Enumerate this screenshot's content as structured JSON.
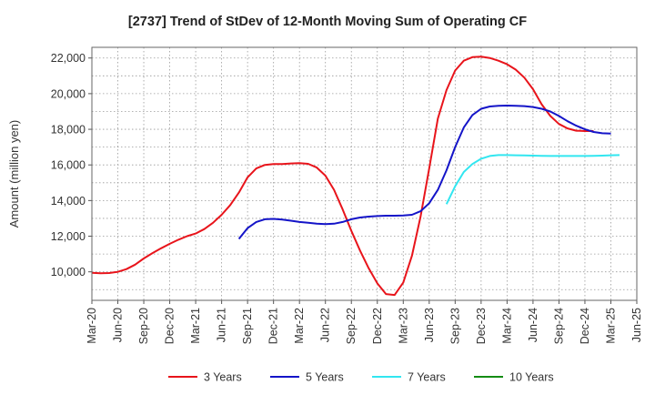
{
  "chart_data": {
    "type": "line",
    "title": "[2737]  Trend of StDev of 12-Month Moving Sum of Operating CF",
    "xlabel": "",
    "ylabel": "Amount (million yen)",
    "ylim": [
      8400,
      22600
    ],
    "yticks": [
      10000,
      12000,
      14000,
      16000,
      18000,
      20000,
      22000
    ],
    "ytick_labels": [
      "10,000",
      "12,000",
      "14,000",
      "16,000",
      "18,000",
      "20,000",
      "22,000"
    ],
    "x_start": "2020-03",
    "xtick_labels": [
      "Mar-20",
      "Jun-20",
      "Sep-20",
      "Dec-20",
      "Mar-21",
      "Jun-21",
      "Sep-21",
      "Dec-21",
      "Mar-22",
      "Jun-22",
      "Sep-22",
      "Dec-22",
      "Mar-23",
      "Jun-23",
      "Sep-23",
      "Dec-23",
      "Mar-24",
      "Jun-24",
      "Sep-24",
      "Dec-24",
      "Mar-25",
      "Jun-25"
    ],
    "grid": true,
    "legend_position": "bottom",
    "series": [
      {
        "name": "3 Years",
        "color": "#e8141b",
        "start": "2020-03",
        "values": [
          9950,
          9920,
          9930,
          10000,
          10150,
          10400,
          10750,
          11050,
          11320,
          11570,
          11800,
          12000,
          12150,
          12400,
          12750,
          13200,
          13750,
          14450,
          15300,
          15800,
          16000,
          16050,
          16050,
          16080,
          16100,
          16060,
          15850,
          15400,
          14600,
          13500,
          12300,
          11200,
          10200,
          9350,
          8750,
          8700,
          9400,
          10900,
          13100,
          15800,
          18600,
          20200,
          21300,
          21850,
          22050,
          22080,
          22000,
          21850,
          21650,
          21350,
          20900,
          20250,
          19400,
          18750,
          18300,
          18050,
          17920,
          17900,
          17900
        ]
      },
      {
        "name": "5 Years",
        "color": "#1414c8",
        "start": "2021-08",
        "values": [
          11850,
          12450,
          12800,
          12950,
          12970,
          12930,
          12870,
          12800,
          12750,
          12700,
          12680,
          12700,
          12800,
          12950,
          13050,
          13100,
          13130,
          13150,
          13150,
          13160,
          13200,
          13400,
          13850,
          14600,
          15700,
          17000,
          18100,
          18800,
          19150,
          19280,
          19320,
          19330,
          19320,
          19300,
          19250,
          19150,
          19000,
          18750,
          18450,
          18200,
          18000,
          17850,
          17780,
          17760
        ]
      },
      {
        "name": "7 Years",
        "color": "#32e6f0",
        "start": "2023-08",
        "values": [
          13800,
          14800,
          15600,
          16050,
          16350,
          16500,
          16550,
          16550,
          16540,
          16530,
          16520,
          16510,
          16500,
          16500,
          16500,
          16500,
          16500,
          16510,
          16520,
          16540,
          16550
        ]
      },
      {
        "name": "10 Years",
        "color": "#148c14",
        "start": "2025-03",
        "values": []
      }
    ]
  }
}
